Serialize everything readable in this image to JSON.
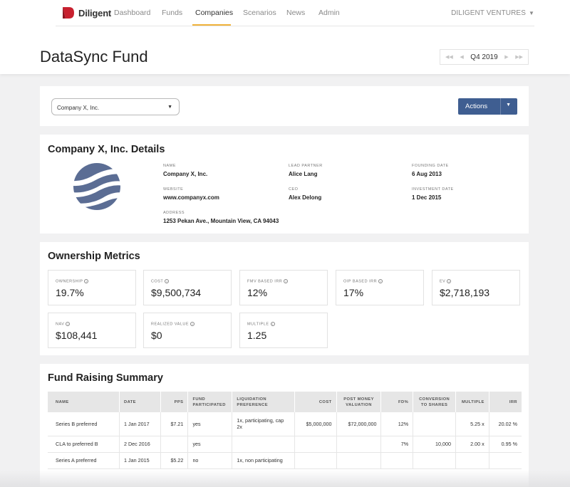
{
  "nav": {
    "brand": "Diligent",
    "items": [
      {
        "label": "Dashboard"
      },
      {
        "label": "Funds"
      },
      {
        "label": "Companies"
      },
      {
        "label": "Scenarios"
      },
      {
        "label": "News"
      },
      {
        "label": "Admin"
      }
    ],
    "active_item": "Companies",
    "org_label": "DILIGENT VENTURES",
    "accent": "#f0b23a"
  },
  "page": {
    "title": "DataSync Fund",
    "period": "Q4 2019"
  },
  "toolbar": {
    "company_select_value": "Company X, Inc.",
    "actions_label": "Actions",
    "actions_color": "#3f5e91"
  },
  "details": {
    "title": "Company X, Inc. Details",
    "logo_color": "#5b6d94",
    "fields": [
      {
        "label": "NAME",
        "value": "Company X, Inc."
      },
      {
        "label": "WEBSITE",
        "value": "www.companyx.com"
      },
      {
        "label": "ADDRESS",
        "value": "1253 Pekan Ave., Mountain View, CA 94043"
      },
      {
        "label": "LEAD PARTNER",
        "value": "Alice Lang"
      },
      {
        "label": "CEO",
        "value": "Alex Delong"
      },
      {
        "label": "FOUNDING DATE",
        "value": "6 Aug 2013"
      },
      {
        "label": "INVESTMENT DATE",
        "value": "1 Dec 2015"
      }
    ]
  },
  "ownership": {
    "title": "Ownership Metrics",
    "info_glyph": "?",
    "metrics": [
      {
        "label": "OWNERSHIP",
        "value": "19.7%"
      },
      {
        "label": "COST",
        "value": "$9,500,734"
      },
      {
        "label": "FMV BASED IRR",
        "value": "12%"
      },
      {
        "label": "OIP BASED IRR",
        "value": "17%"
      },
      {
        "label": "EV",
        "value": "$2,718,193"
      },
      {
        "label": "NAV",
        "value": "$108,441"
      },
      {
        "label": "REALIZED VALUE",
        "value": "$0"
      },
      {
        "label": "MULTIPLE",
        "value": "1.25"
      }
    ]
  },
  "fund_raising": {
    "title": "Fund Raising Summary",
    "columns": [
      "NAME",
      "DATE",
      "PPS",
      "FUND PARTICIPATED",
      "LIQUIDATION PREFERENCE",
      "COST",
      "POST MONEY VALUATION",
      "FD%",
      "CONVERSION TO SHARES",
      "MULTIPLE",
      "IRR"
    ],
    "rows": [
      [
        "Series B preferred",
        "1 Jan 2017",
        "$7.21",
        "yes",
        "1x, participating, cap 2x",
        "$5,000,000",
        "$72,000,000",
        "12%",
        "",
        "5.25 x",
        "20.02 %"
      ],
      [
        "CLA to preferred B",
        "2 Dec 2016",
        "",
        "yes",
        "",
        "",
        "",
        "7%",
        "10,000",
        "2.00 x",
        "0.95 %"
      ],
      [
        "Series A preferred",
        "1 Jan 2015",
        "$5.22",
        "no",
        "1x, non participating",
        "",
        "",
        "",
        "",
        "",
        ""
      ]
    ]
  }
}
